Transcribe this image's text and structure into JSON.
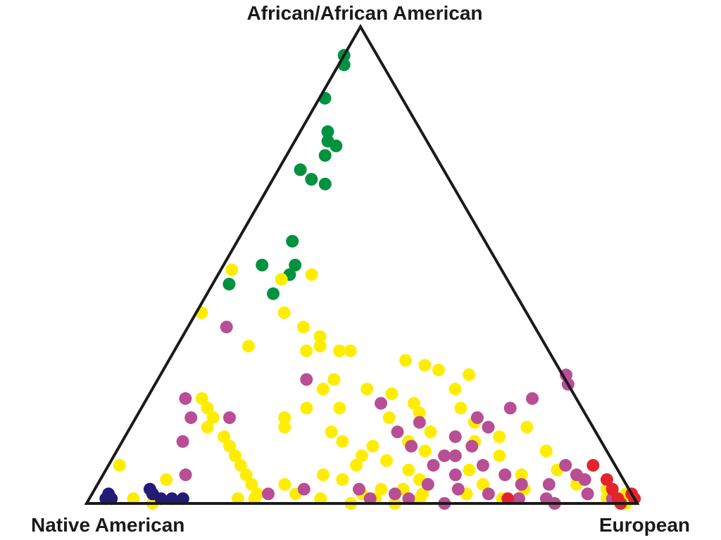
{
  "chart_data": {
    "type": "scatter",
    "subtype": "ternary",
    "grid": false,
    "vertices": {
      "top": "African/African American",
      "left": "Native American",
      "right": "European"
    },
    "colors": {
      "green": "#00923f",
      "yellow": "#ffed00",
      "magenta": "#b84e95",
      "red": "#e3242b",
      "navy": "#241a78",
      "outline": "#1a1a1a"
    },
    "series": [
      {
        "color_key": "green",
        "points": [
          [
            0.94,
            0.0
          ],
          [
            0.92,
            0.01
          ],
          [
            0.85,
            0.01
          ],
          [
            0.78,
            0.05
          ],
          [
            0.76,
            0.06
          ],
          [
            0.75,
            0.08
          ],
          [
            0.73,
            0.07
          ],
          [
            0.7,
            0.04
          ],
          [
            0.68,
            0.07
          ],
          [
            0.67,
            0.1
          ],
          [
            0.55,
            0.1
          ],
          [
            0.5,
            0.07
          ],
          [
            0.46,
            0.03
          ],
          [
            0.5,
            0.13
          ],
          [
            0.48,
            0.13
          ],
          [
            0.44,
            0.12
          ]
        ]
      },
      {
        "color_key": "yellow",
        "points": [
          [
            0.48,
            0.17
          ],
          [
            0.47,
            0.12
          ],
          [
            0.49,
            0.02
          ],
          [
            0.4,
            0.16
          ],
          [
            0.4,
            0.01
          ],
          [
            0.37,
            0.21
          ],
          [
            0.35,
            0.25
          ],
          [
            0.33,
            0.13
          ],
          [
            0.32,
            0.24
          ],
          [
            0.32,
            0.3
          ],
          [
            0.33,
            0.26
          ],
          [
            0.32,
            0.32
          ],
          [
            0.3,
            0.43
          ],
          [
            0.29,
            0.47
          ],
          [
            0.26,
            0.32
          ],
          [
            0.24,
            0.31
          ],
          [
            0.24,
            0.39
          ],
          [
            0.23,
            0.44
          ],
          [
            0.2,
            0.3
          ],
          [
            0.2,
            0.36
          ],
          [
            0.18,
            0.27
          ],
          [
            0.18,
            0.46
          ],
          [
            0.16,
            0.28
          ],
          [
            0.15,
            0.37
          ],
          [
            0.13,
            0.4
          ],
          [
            0.12,
            0.46
          ],
          [
            0.1,
            0.45
          ],
          [
            0.08,
            0.45
          ],
          [
            0.06,
            0.4
          ],
          [
            0.05,
            0.44
          ],
          [
            0.04,
            0.34
          ],
          [
            0.03,
            0.52
          ],
          [
            0.02,
            0.6
          ],
          [
            0.28,
            0.5
          ],
          [
            0.27,
            0.56
          ],
          [
            0.24,
            0.55
          ],
          [
            0.21,
            0.49
          ],
          [
            0.19,
            0.51
          ],
          [
            0.17,
            0.52
          ],
          [
            0.15,
            0.55
          ],
          [
            0.13,
            0.52
          ],
          [
            0.11,
            0.56
          ],
          [
            0.09,
            0.5
          ],
          [
            0.07,
            0.55
          ],
          [
            0.05,
            0.58
          ],
          [
            0.03,
            0.56
          ],
          [
            0.01,
            0.6
          ],
          [
            0.2,
            0.58
          ],
          [
            0.17,
            0.62
          ],
          [
            0.13,
            0.64
          ],
          [
            0.1,
            0.62
          ],
          [
            0.07,
            0.66
          ],
          [
            0.04,
            0.7
          ],
          [
            0.02,
            0.68
          ],
          [
            0.01,
            0.75
          ],
          [
            0.03,
            0.78
          ],
          [
            0.06,
            0.76
          ],
          [
            0.1,
            0.7
          ],
          [
            0.14,
            0.68
          ],
          [
            0.16,
            0.72
          ],
          [
            0.11,
            0.78
          ],
          [
            0.07,
            0.82
          ],
          [
            0.04,
            0.87
          ],
          [
            0.02,
            0.9
          ],
          [
            0.01,
            0.94
          ],
          [
            0.01,
            0.96
          ],
          [
            0.02,
            0.97
          ],
          [
            0.0,
            0.98
          ],
          [
            0.03,
            0.93
          ],
          [
            0.22,
            0.1
          ],
          [
            0.2,
            0.12
          ],
          [
            0.18,
            0.14
          ],
          [
            0.16,
            0.14
          ],
          [
            0.14,
            0.18
          ],
          [
            0.12,
            0.2
          ],
          [
            0.1,
            0.22
          ],
          [
            0.08,
            0.24
          ],
          [
            0.06,
            0.26
          ],
          [
            0.04,
            0.28
          ],
          [
            0.02,
            0.3
          ],
          [
            0.01,
            0.3
          ],
          [
            0.0,
            0.12
          ],
          [
            0.01,
            0.08
          ],
          [
            0.05,
            0.12
          ],
          [
            0.08,
            0.02
          ],
          [
            0.01,
            0.27
          ],
          [
            0.02,
            0.37
          ],
          [
            0.01,
            0.42
          ],
          [
            0.0,
            0.48
          ],
          [
            0.02,
            0.49
          ],
          [
            0.01,
            0.52
          ],
          [
            0.0,
            0.56
          ]
        ]
      },
      {
        "color_key": "magenta",
        "points": [
          [
            0.37,
            0.07
          ],
          [
            0.22,
            0.07
          ],
          [
            0.18,
            0.1
          ],
          [
            0.18,
            0.17
          ],
          [
            0.13,
            0.11
          ],
          [
            0.06,
            0.15
          ],
          [
            0.02,
            0.32
          ],
          [
            0.03,
            0.38
          ],
          [
            0.28,
            0.73
          ],
          [
            0.25,
            0.75
          ],
          [
            0.22,
            0.7
          ],
          [
            0.2,
            0.67
          ],
          [
            0.18,
            0.62
          ],
          [
            0.16,
            0.65
          ],
          [
            0.14,
            0.6
          ],
          [
            0.12,
            0.64
          ],
          [
            0.1,
            0.62
          ],
          [
            0.08,
            0.59
          ],
          [
            0.06,
            0.64
          ],
          [
            0.04,
            0.6
          ],
          [
            0.03,
            0.66
          ],
          [
            0.02,
            0.72
          ],
          [
            0.01,
            0.78
          ],
          [
            0.04,
            0.82
          ],
          [
            0.06,
            0.86
          ],
          [
            0.08,
            0.83
          ],
          [
            0.05,
            0.88
          ],
          [
            0.01,
            0.83
          ],
          [
            0.02,
            0.9
          ],
          [
            0.01,
            0.95
          ],
          [
            0.26,
            0.27
          ],
          [
            0.21,
            0.43
          ],
          [
            0.17,
            0.52
          ],
          [
            0.15,
            0.49
          ],
          [
            0.12,
            0.53
          ],
          [
            0.1,
            0.6
          ],
          [
            0.08,
            0.68
          ],
          [
            0.06,
            0.73
          ],
          [
            0.04,
            0.77
          ],
          [
            0.03,
            0.48
          ],
          [
            0.01,
            0.51
          ],
          [
            0.02,
            0.55
          ],
          [
            0.01,
            0.58
          ],
          [
            0.0,
            0.65
          ],
          [
            0.0,
            0.85
          ]
        ]
      },
      {
        "color_key": "red",
        "points": [
          [
            0.08,
            0.88
          ],
          [
            0.05,
            0.92
          ],
          [
            0.03,
            0.94
          ],
          [
            0.01,
            0.96
          ],
          [
            0.01,
            0.99
          ],
          [
            0.02,
            0.98
          ],
          [
            0.0,
            0.97
          ],
          [
            0.01,
            0.76
          ]
        ]
      },
      {
        "color_key": "navy",
        "points": [
          [
            0.02,
            0.03
          ],
          [
            0.01,
            0.03
          ],
          [
            0.01,
            0.04
          ],
          [
            0.03,
            0.1
          ],
          [
            0.02,
            0.11
          ],
          [
            0.01,
            0.13
          ],
          [
            0.01,
            0.15
          ],
          [
            0.01,
            0.17
          ]
        ]
      }
    ]
  }
}
